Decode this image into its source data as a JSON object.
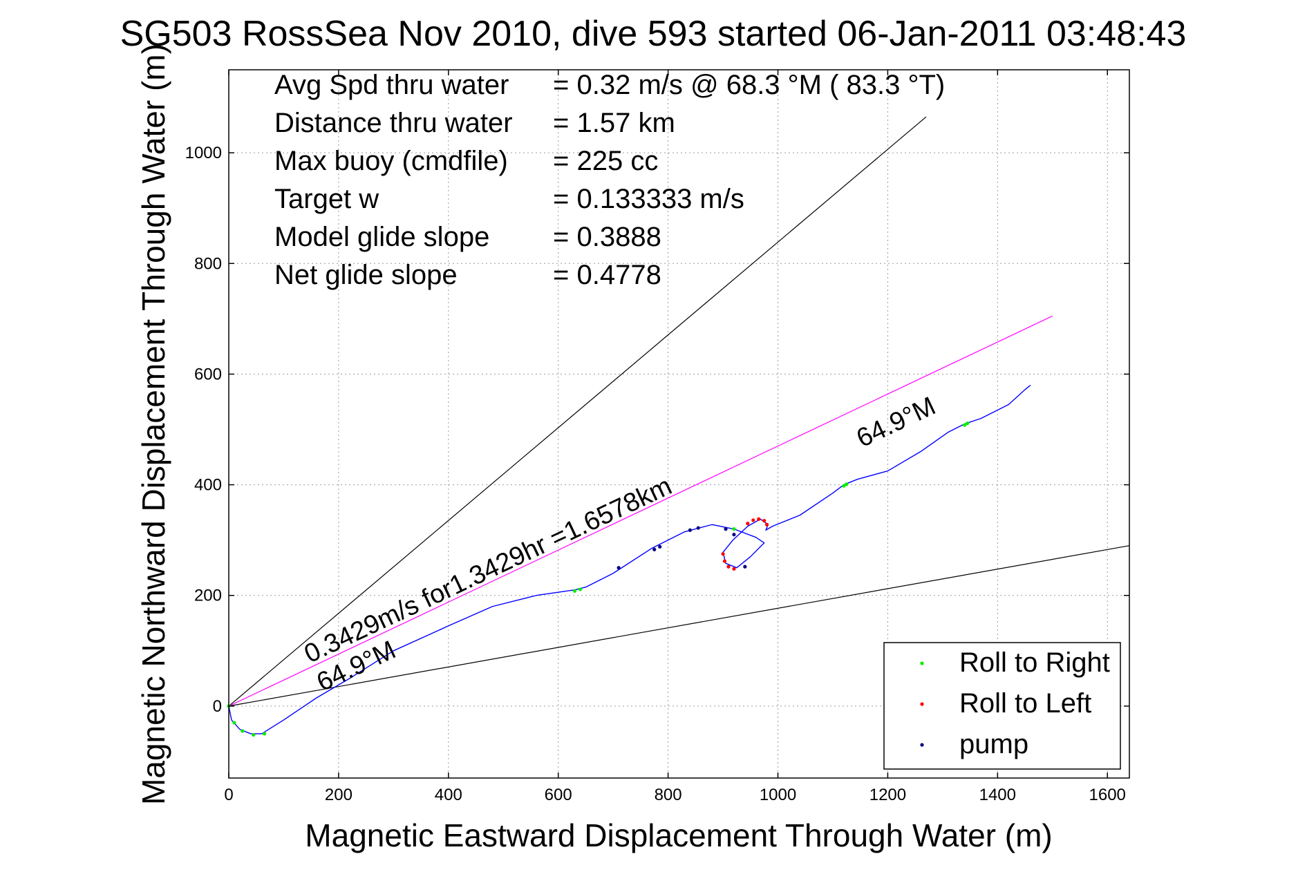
{
  "chart_data": {
    "type": "line",
    "title": "SG503 RossSea Nov 2010, dive 593 started 06-Jan-2011 03:48:43",
    "xlabel": "Magnetic Eastward Displacement Through Water (m)",
    "ylabel": "Magnetic Northward Displacement Through Water (m)",
    "xlim": [
      0,
      1640
    ],
    "ylim": [
      -130,
      1150
    ],
    "xticks": [
      0,
      200,
      400,
      600,
      800,
      1000,
      1200,
      1400,
      1600
    ],
    "yticks": [
      0,
      200,
      400,
      600,
      800,
      1000
    ],
    "grid": true,
    "legend_position": "bottom-right",
    "info_lines": [
      {
        "label": "Avg Spd thru water",
        "value": "=  0.32 m/s @  68.3 °M ( 83.3 °T)"
      },
      {
        "label": "Distance thru water",
        "value": "=  1.57 km"
      },
      {
        "label": "Max buoy (cmdfile)",
        "value": "= 225 cc"
      },
      {
        "label": "Target w",
        "value": "= 0.133333 m/s"
      },
      {
        "label": "Model glide slope",
        "value": "= 0.3888"
      },
      {
        "label": "Net glide slope",
        "value": "= 0.4778"
      }
    ],
    "annotations": {
      "speed_text": "0.3429m/s for1.3429hr =1.6578km",
      "heading_lower": "64.9°M",
      "heading_upper": "64.9°M"
    },
    "reference_lines": [
      {
        "color": "#000000",
        "points": [
          [
            0,
            0
          ],
          [
            1270,
            1065
          ]
        ]
      },
      {
        "color": "#000000",
        "points": [
          [
            0,
            0
          ],
          [
            1640,
            290
          ]
        ]
      },
      {
        "color": "#ff00ff",
        "points": [
          [
            0,
            0
          ],
          [
            1500,
            705
          ]
        ]
      }
    ],
    "track": {
      "color": "#0000ff",
      "points": [
        [
          0,
          0
        ],
        [
          5,
          -25
        ],
        [
          20,
          -42
        ],
        [
          40,
          -50
        ],
        [
          60,
          -50
        ],
        [
          100,
          -25
        ],
        [
          160,
          15
        ],
        [
          220,
          50
        ],
        [
          300,
          100
        ],
        [
          400,
          145
        ],
        [
          480,
          180
        ],
        [
          560,
          200
        ],
        [
          630,
          210
        ],
        [
          650,
          215
        ],
        [
          700,
          240
        ],
        [
          770,
          285
        ],
        [
          830,
          315
        ],
        [
          880,
          328
        ],
        [
          920,
          320
        ],
        [
          960,
          305
        ],
        [
          975,
          295
        ],
        [
          950,
          270
        ],
        [
          925,
          250
        ],
        [
          905,
          258
        ],
        [
          900,
          278
        ],
        [
          918,
          300
        ],
        [
          945,
          325
        ],
        [
          968,
          338
        ],
        [
          982,
          328
        ],
        [
          978,
          318
        ],
        [
          990,
          325
        ],
        [
          1040,
          345
        ],
        [
          1100,
          385
        ],
        [
          1120,
          400
        ],
        [
          1145,
          410
        ],
        [
          1200,
          425
        ],
        [
          1260,
          460
        ],
        [
          1310,
          495
        ],
        [
          1340,
          510
        ],
        [
          1370,
          520
        ],
        [
          1420,
          545
        ],
        [
          1450,
          572
        ],
        [
          1460,
          580
        ]
      ]
    },
    "series": [
      {
        "name": "Roll to Right",
        "color": "#00ee00",
        "x": [
          0,
          10,
          25,
          45,
          65,
          630,
          640,
          1120,
          1125,
          1340,
          1345,
          920
        ],
        "y": [
          0,
          -30,
          -45,
          -52,
          -50,
          208,
          211,
          398,
          401,
          508,
          511,
          320
        ]
      },
      {
        "name": "Roll to Left",
        "color": "#ff0000",
        "x": [
          900,
          903,
          910,
          920,
          945,
          955,
          965,
          975,
          980
        ],
        "y": [
          275,
          262,
          252,
          248,
          330,
          336,
          338,
          335,
          328
        ]
      },
      {
        "name": "pump",
        "color": "#000080",
        "x": [
          710,
          775,
          785,
          840,
          855,
          905,
          920,
          940
        ],
        "y": [
          250,
          283,
          288,
          318,
          322,
          320,
          310,
          252
        ]
      }
    ]
  }
}
